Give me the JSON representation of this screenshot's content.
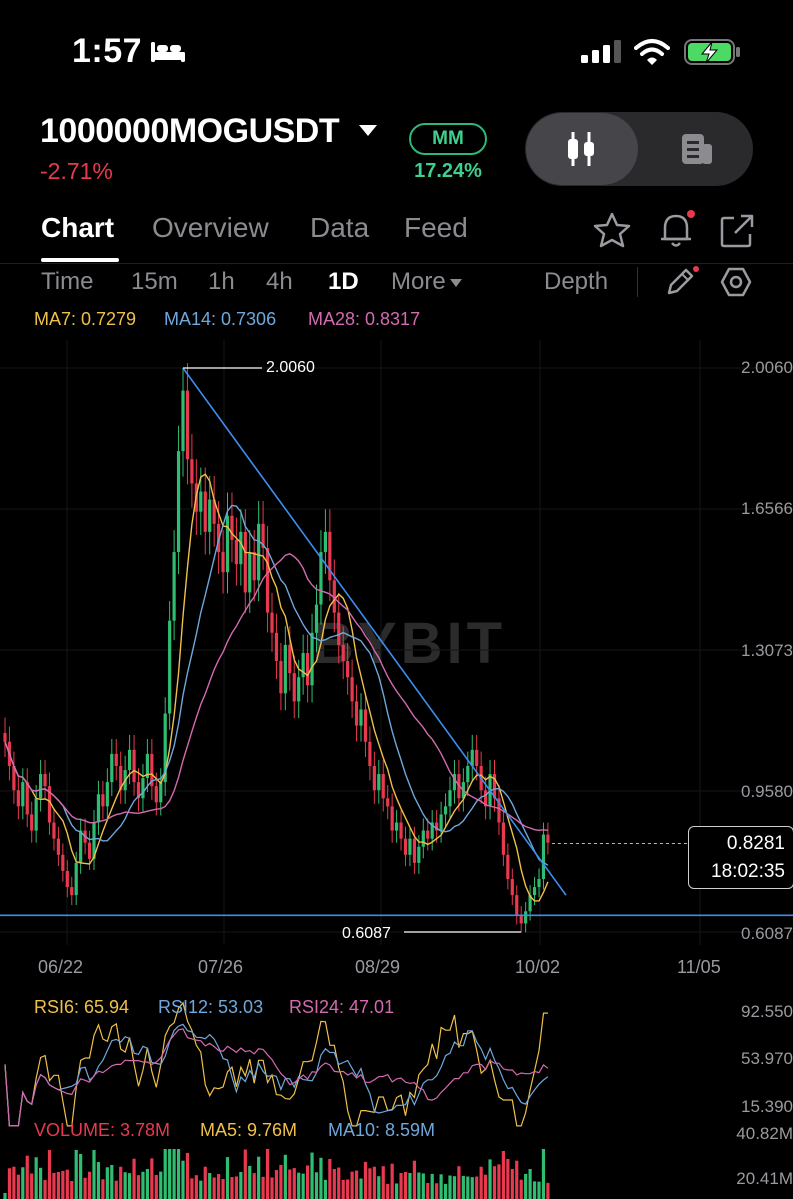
{
  "status_bar": {
    "time": "1:57"
  },
  "header": {
    "symbol": "1000000MOGUSDT",
    "change": "-2.71%",
    "mm_badge": "MM",
    "mm_percent": "17.24%"
  },
  "tabs": [
    {
      "label": "Chart",
      "active": true
    },
    {
      "label": "Overview",
      "active": false
    },
    {
      "label": "Data",
      "active": false
    },
    {
      "label": "Feed",
      "active": false
    }
  ],
  "timeframes": [
    {
      "label": "Time",
      "active": false
    },
    {
      "label": "15m",
      "active": false
    },
    {
      "label": "1h",
      "active": false
    },
    {
      "label": "4h",
      "active": false
    },
    {
      "label": "1D",
      "active": true
    },
    {
      "label": "More",
      "active": false
    },
    {
      "label": "Depth",
      "active": false
    }
  ],
  "indicators": {
    "ma7": "MA7: 0.7279",
    "ma14": "MA14: 0.7306",
    "ma28": "MA28: 0.8317",
    "rsi6": "RSI6: 65.94",
    "rsi12": "RSI12: 53.03",
    "rsi24": "RSI24: 47.01",
    "volume": "VOLUME: 3.78M",
    "vol_ma5": "MA5: 9.76M",
    "vol_ma10": "MA10: 8.59M"
  },
  "colors": {
    "up": "#2fbd72",
    "down": "#e8394f",
    "ma7": "#f0c04a",
    "ma14": "#6fa8dc",
    "ma28": "#d46ab0",
    "trendline": "#3d8ef0",
    "support": "#3d8ef0"
  },
  "watermark": "BYBIT",
  "chart_data": {
    "type": "candlestick",
    "y_axis_labels": [
      "2.0060",
      "1.6566",
      "1.3073",
      "0.9580",
      "0.6087"
    ],
    "x_axis_labels": [
      "06/22",
      "07/26",
      "08/29",
      "10/02",
      "11/05"
    ],
    "ylim": [
      0.6087,
      2.006
    ],
    "high_annotation": "2.0060",
    "low_annotation": "0.6087",
    "last_price": "0.8281",
    "countdown": "18:02:35",
    "close_series": [
      1.08,
      1.02,
      0.96,
      0.92,
      0.98,
      0.9,
      0.86,
      0.94,
      1.0,
      0.97,
      0.88,
      0.84,
      0.8,
      0.76,
      0.72,
      0.7,
      0.78,
      0.86,
      0.83,
      0.79,
      0.88,
      0.95,
      0.92,
      0.98,
      1.05,
      1.02,
      0.96,
      1.01,
      1.06,
      0.98,
      0.94,
      0.99,
      1.05,
      0.97,
      0.93,
      0.98,
      1.15,
      1.38,
      1.55,
      1.8,
      1.95,
      1.78,
      1.72,
      1.65,
      1.7,
      1.6,
      1.68,
      1.62,
      1.55,
      1.5,
      1.64,
      1.58,
      1.52,
      1.6,
      1.45,
      1.55,
      1.48,
      1.62,
      1.56,
      1.4,
      1.35,
      1.28,
      1.2,
      1.32,
      1.25,
      1.18,
      1.24,
      1.3,
      1.22,
      1.35,
      1.42,
      1.55,
      1.6,
      1.48,
      1.4,
      1.32,
      1.28,
      1.24,
      1.18,
      1.12,
      1.16,
      1.08,
      1.02,
      0.96,
      1.0,
      0.94,
      0.92,
      0.86,
      0.88,
      0.84,
      0.8,
      0.84,
      0.78,
      0.82,
      0.86,
      0.84,
      0.88,
      0.86,
      0.9,
      0.92,
      0.96,
      1.0,
      0.94,
      0.98,
      1.02,
      1.06,
      1.02,
      0.96,
      0.92,
      1.0,
      0.94,
      0.88,
      0.8,
      0.74,
      0.7,
      0.65,
      0.63,
      0.66,
      0.7,
      0.72,
      0.74,
      0.85,
      0.83
    ],
    "rsi_axis_labels": [
      "92.550",
      "53.970",
      "15.390"
    ],
    "volume_axis_labels": [
      "40.82M",
      "20.41M"
    ],
    "series": [
      {
        "name": "MA7"
      },
      {
        "name": "MA14"
      },
      {
        "name": "MA28"
      }
    ]
  }
}
